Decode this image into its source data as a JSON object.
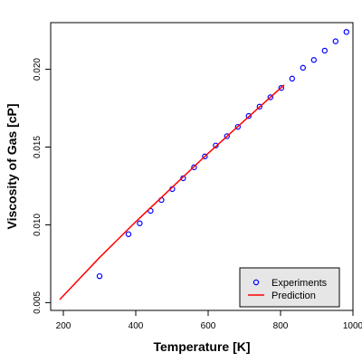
{
  "chart_data": {
    "type": "scatter",
    "title": "",
    "xlabel": "Temperature [K]",
    "ylabel": "Viscosity of Gas [cP]",
    "xlim": [
      165,
      1000
    ],
    "ylim": [
      0.0045,
      0.023
    ],
    "x_ticks": [
      200,
      400,
      600,
      800,
      1000
    ],
    "x_tick_labels": [
      "200",
      "400",
      "600",
      "800",
      "1000"
    ],
    "y_ticks": [
      0.005,
      0.01,
      0.015,
      0.02
    ],
    "y_tick_labels": [
      "0.005",
      "0.010",
      "0.015",
      "0.020"
    ],
    "grid": false,
    "legend_position": "bottom-right",
    "series": [
      {
        "name": "Experiments",
        "style": "open-circle",
        "color": "#0000ff",
        "x": [
          300,
          380,
          411,
          441,
          471,
          501,
          531,
          561,
          591,
          621,
          652,
          682,
          712,
          742,
          772,
          802,
          832,
          862,
          892,
          922,
          952,
          982
        ],
        "y": [
          0.0067,
          0.0094,
          0.0101,
          0.0109,
          0.0116,
          0.0123,
          0.013,
          0.0137,
          0.0144,
          0.0151,
          0.0157,
          0.0163,
          0.017,
          0.0176,
          0.0182,
          0.0188,
          0.0194,
          0.0201,
          0.0206,
          0.0212,
          0.0218,
          0.0224
        ]
      },
      {
        "name": "Prediction",
        "style": "line",
        "color": "#ff0000",
        "x": [
          190,
          300,
          400,
          500,
          600,
          700,
          810
        ],
        "y": [
          0.0052,
          0.0079,
          0.0102,
          0.0124,
          0.0146,
          0.0167,
          0.019
        ]
      }
    ]
  }
}
